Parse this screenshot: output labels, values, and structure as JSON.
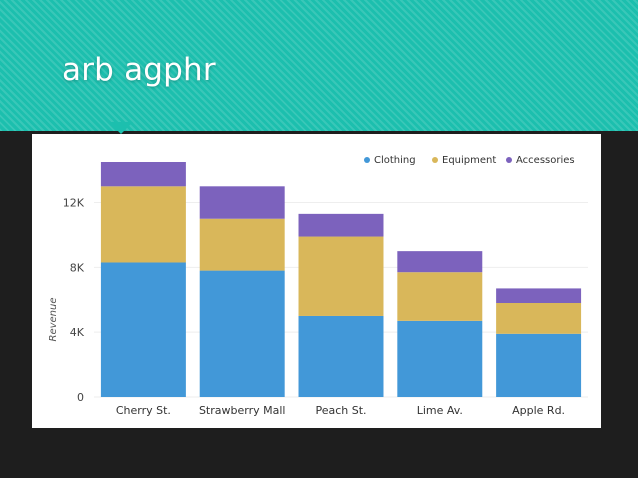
{
  "slide": {
    "title": "arb agphr"
  },
  "chart_data": {
    "type": "bar",
    "stacked": true,
    "categories": [
      "Cherry St.",
      "Strawberry Mall",
      "Peach St.",
      "Lime Av.",
      "Apple Rd."
    ],
    "series": [
      {
        "name": "Clothing",
        "color": "#4298d8",
        "values": [
          8300,
          7800,
          5000,
          4700,
          3900
        ]
      },
      {
        "name": "Equipment",
        "color": "#d9b75a",
        "values": [
          4700,
          3200,
          4900,
          3000,
          1900
        ]
      },
      {
        "name": "Accessories",
        "color": "#7c62bd",
        "values": [
          1500,
          2000,
          1400,
          1300,
          900
        ]
      }
    ],
    "ylabel": "Revenue",
    "ylim": [
      0,
      14500
    ],
    "yticks": [
      0,
      4000,
      8000,
      12000
    ],
    "ytick_labels": [
      "0",
      "4K",
      "8K",
      "12K"
    ],
    "grid": true,
    "legend": "top-right"
  }
}
